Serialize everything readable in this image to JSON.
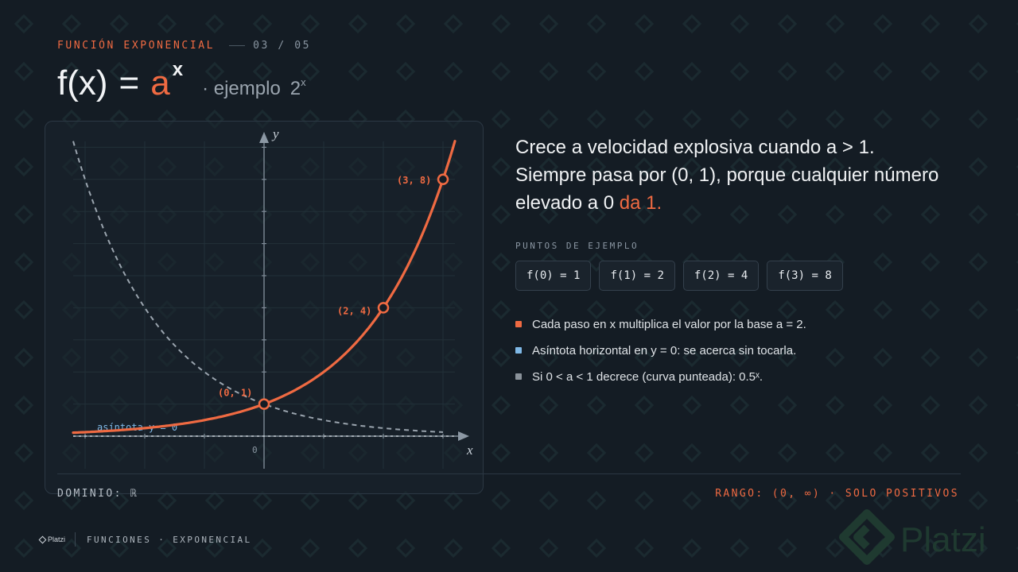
{
  "kicker": {
    "section": "FUNCIÓN EXPONENCIAL",
    "counter": "03 / 05"
  },
  "formula": {
    "lhs": "f(x)",
    "eq": "=",
    "base": "a",
    "exponent": "x",
    "example_prefix": "· ejemplo",
    "example_base": "2",
    "example_exp": "x"
  },
  "description": {
    "line1": "Crece a velocidad explosiva cuando a > 1.",
    "line2": "Siempre pasa por (0, 1), porque cualquier número",
    "line3_prefix": "elevado a 0",
    "line3_highlight": "da 1."
  },
  "points_label": "PUNTOS DE EJEMPLO",
  "chips": [
    "f(0) = 1",
    "f(1) = 2",
    "f(2) = 4",
    "f(3) = 8"
  ],
  "bullets": [
    {
      "text": "Cada paso en x multiplica el valor por la base a = 2.",
      "color": "#ef6a42"
    },
    {
      "text": "Asíntota horizontal en y = 0: se acerca sin tocarla.",
      "color": "#7fb8e6"
    },
    {
      "text": "Si 0 < a < 1 decrece (curva punteada): 0.5ˣ.",
      "color": "#8a929a"
    }
  ],
  "dominio": "DOMINIO: ℝ",
  "rango": "RANGO: (0, ∞) · SOLO POSITIVOS",
  "footer": {
    "brand": "Platzi",
    "course": "FUNCIONES · EXPONENCIAL"
  },
  "watermark": "Platzi",
  "colors": {
    "accent": "#ef6a42",
    "asymptote": "#7fb8e6",
    "dashed_curve": "#9aa4ae",
    "background": "#141c24"
  },
  "chart_data": {
    "type": "line",
    "xlabel": "x",
    "ylabel": "y",
    "origin_label": "0",
    "xlim": [
      -3.2,
      3.4
    ],
    "ylim": [
      -1,
      10
    ],
    "grid": true,
    "asymptote_label": "asíntota y = 0",
    "series": [
      {
        "function": "2^x",
        "style": "solid",
        "color": "#ef6a42",
        "x": [
          -3,
          -2,
          -1,
          0,
          1,
          2,
          3,
          3.2
        ],
        "y": [
          0.125,
          0.25,
          0.5,
          1,
          2,
          4,
          8,
          9.19
        ]
      },
      {
        "function": "0.5^x",
        "style": "dashed",
        "color": "#9aa4ae",
        "x": [
          -3.2,
          -3,
          -2,
          -1,
          0,
          1,
          2,
          3.2
        ],
        "y": [
          9.19,
          8,
          4,
          2,
          1,
          0.5,
          0.25,
          0.11
        ]
      }
    ],
    "points": [
      {
        "x": 0,
        "y": 1,
        "label": "(0, 1)"
      },
      {
        "x": 2,
        "y": 4,
        "label": "(2, 4)"
      },
      {
        "x": 3,
        "y": 8,
        "label": "(3, 8)"
      }
    ]
  }
}
